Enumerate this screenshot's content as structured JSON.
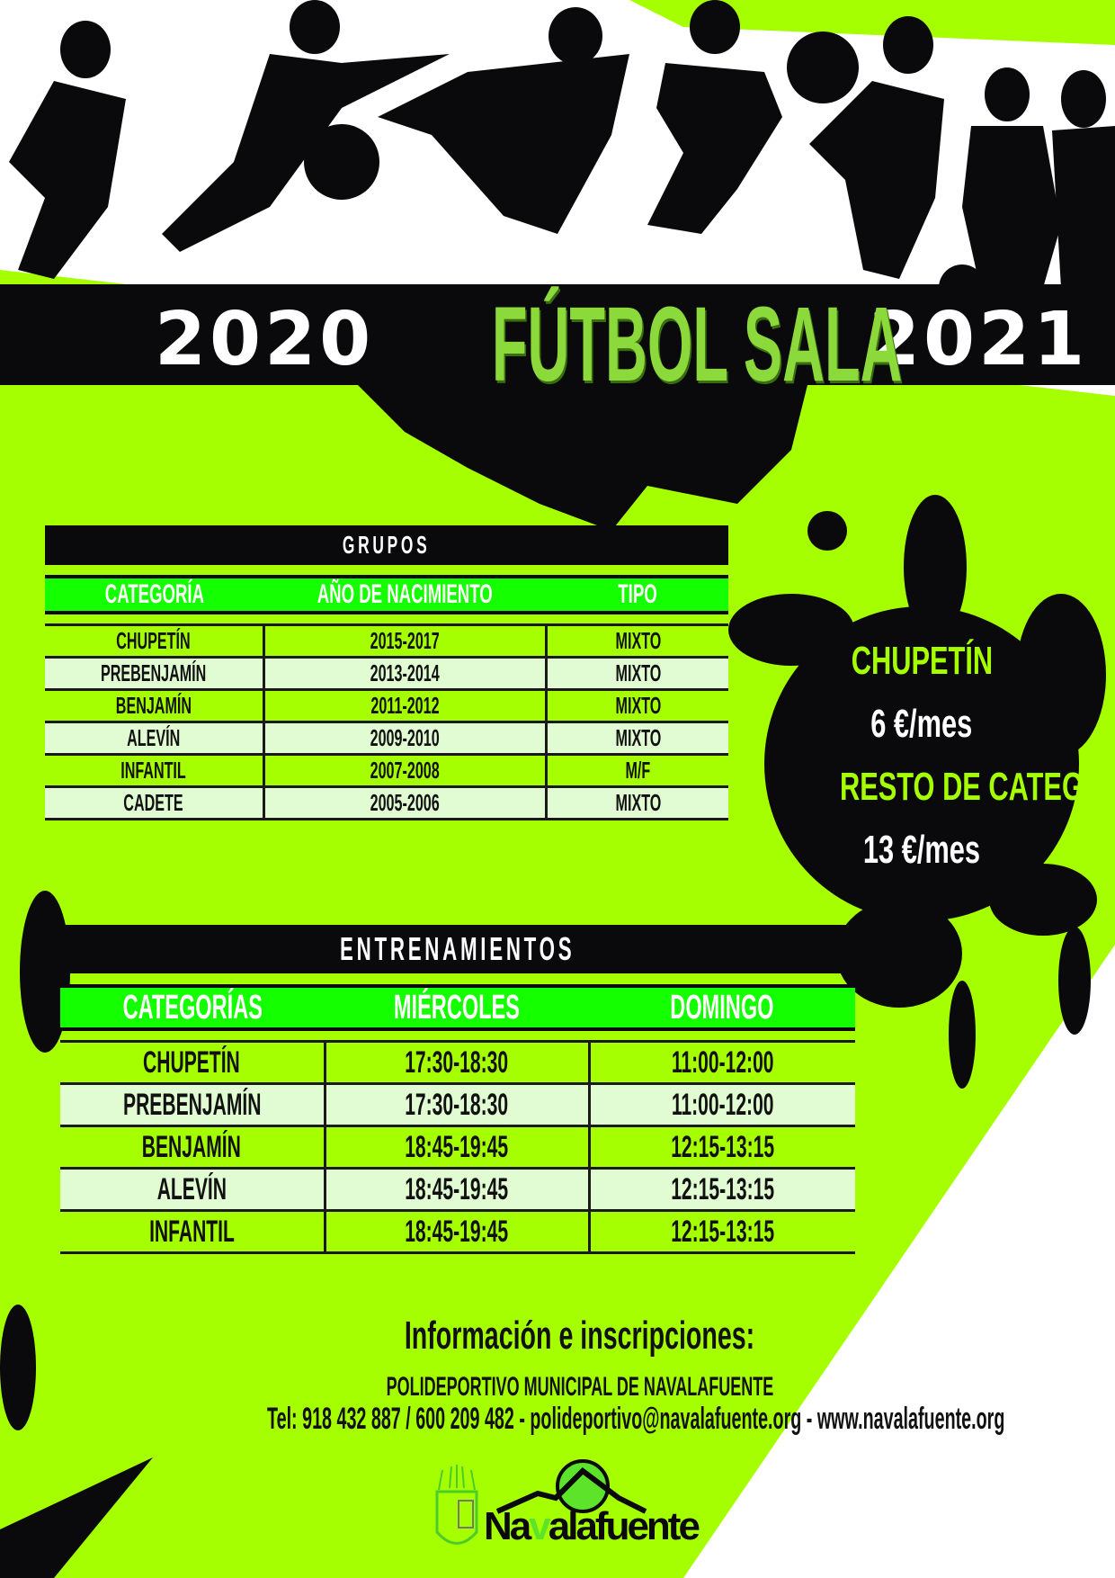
{
  "header": {
    "year_start": "2020",
    "title": "FÚTBOL SALA",
    "year_end": "2021"
  },
  "colors": {
    "lime": "#a6ff00",
    "header_green": "#14ff00",
    "black": "#0a0a0d",
    "light_row": "#e1fcd2",
    "price_text": "#a6ff00"
  },
  "grupos": {
    "title": "GRUPOS",
    "columns": [
      "CATEGORÍA",
      "AÑO DE NACIMIENTO",
      "TIPO"
    ],
    "rows": [
      [
        "CHUPETÍN",
        "2015-2017",
        "MIXTO"
      ],
      [
        "PREBENJAMÍN",
        "2013-2014",
        "MIXTO"
      ],
      [
        "BENJAMÍN",
        "2011-2012",
        "MIXTO"
      ],
      [
        "ALEVÍN",
        "2009-2010",
        "MIXTO"
      ],
      [
        "INFANTIL",
        "2007-2008",
        "M/F"
      ],
      [
        "CADETE",
        "2005-2006",
        "MIXTO"
      ]
    ]
  },
  "precios": {
    "cat1": "CHUPETÍN",
    "price1": "6 €/mes",
    "cat2": "RESTO DE CATEGORÍAS",
    "price2": "13 €/mes"
  },
  "entrenamientos": {
    "title": "ENTRENAMIENTOS",
    "columns": [
      "CATEGORÍAS",
      "MIÉRCOLES",
      "DOMINGO"
    ],
    "rows": [
      [
        "CHUPETÍN",
        "17:30-18:30",
        "11:00-12:00"
      ],
      [
        "PREBENJAMÍN",
        "17:30-18:30",
        "11:00-12:00"
      ],
      [
        "BENJAMÍN",
        "18:45-19:45",
        "12:15-13:15"
      ],
      [
        "ALEVÍN",
        "18:45-19:45",
        "12:15-13:15"
      ],
      [
        "INFANTIL",
        "18:45-19:45",
        "12:15-13:15"
      ]
    ]
  },
  "info": {
    "heading": "Información e inscripciones:",
    "venue": "POLIDEPORTIVO MUNICIPAL DE NAVALAFUENTE",
    "contact": "Tel: 918 432 887 / 600 209 482 - polideportivo@navalafuente.org - www.navalafuente.org"
  },
  "logo": {
    "text": "Navalafuente",
    "icons": [
      "coat-of-arms-icon",
      "mountain-sun-icon"
    ]
  }
}
